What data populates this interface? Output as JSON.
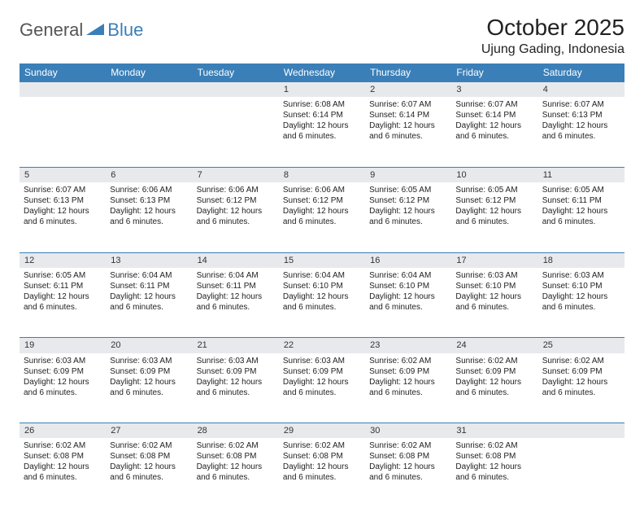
{
  "logo": {
    "text_a": "General",
    "text_b": "Blue"
  },
  "title": "October 2025",
  "location": "Ujung Gading, Indonesia",
  "colors": {
    "header_bg": "#3a7fb8",
    "header_text": "#ffffff",
    "daynum_bg": "#e7e9ec",
    "row_sep": "#3a7fb8",
    "body_text": "#222222",
    "logo_gray": "#555555",
    "logo_blue": "#3a7fb8",
    "page_bg": "#ffffff"
  },
  "typography": {
    "title_fontsize": 28,
    "location_fontsize": 16,
    "weekday_fontsize": 12,
    "daynum_fontsize": 11,
    "cell_fontsize": 10
  },
  "weekdays": [
    "Sunday",
    "Monday",
    "Tuesday",
    "Wednesday",
    "Thursday",
    "Friday",
    "Saturday"
  ],
  "weeks": [
    {
      "nums": [
        "",
        "",
        "",
        "1",
        "2",
        "3",
        "4"
      ],
      "cells": [
        null,
        null,
        null,
        {
          "sunrise": "Sunrise: 6:08 AM",
          "sunset": "Sunset: 6:14 PM",
          "day1": "Daylight: 12 hours",
          "day2": "and 6 minutes."
        },
        {
          "sunrise": "Sunrise: 6:07 AM",
          "sunset": "Sunset: 6:14 PM",
          "day1": "Daylight: 12 hours",
          "day2": "and 6 minutes."
        },
        {
          "sunrise": "Sunrise: 6:07 AM",
          "sunset": "Sunset: 6:14 PM",
          "day1": "Daylight: 12 hours",
          "day2": "and 6 minutes."
        },
        {
          "sunrise": "Sunrise: 6:07 AM",
          "sunset": "Sunset: 6:13 PM",
          "day1": "Daylight: 12 hours",
          "day2": "and 6 minutes."
        }
      ]
    },
    {
      "nums": [
        "5",
        "6",
        "7",
        "8",
        "9",
        "10",
        "11"
      ],
      "cells": [
        {
          "sunrise": "Sunrise: 6:07 AM",
          "sunset": "Sunset: 6:13 PM",
          "day1": "Daylight: 12 hours",
          "day2": "and 6 minutes."
        },
        {
          "sunrise": "Sunrise: 6:06 AM",
          "sunset": "Sunset: 6:13 PM",
          "day1": "Daylight: 12 hours",
          "day2": "and 6 minutes."
        },
        {
          "sunrise": "Sunrise: 6:06 AM",
          "sunset": "Sunset: 6:12 PM",
          "day1": "Daylight: 12 hours",
          "day2": "and 6 minutes."
        },
        {
          "sunrise": "Sunrise: 6:06 AM",
          "sunset": "Sunset: 6:12 PM",
          "day1": "Daylight: 12 hours",
          "day2": "and 6 minutes."
        },
        {
          "sunrise": "Sunrise: 6:05 AM",
          "sunset": "Sunset: 6:12 PM",
          "day1": "Daylight: 12 hours",
          "day2": "and 6 minutes."
        },
        {
          "sunrise": "Sunrise: 6:05 AM",
          "sunset": "Sunset: 6:12 PM",
          "day1": "Daylight: 12 hours",
          "day2": "and 6 minutes."
        },
        {
          "sunrise": "Sunrise: 6:05 AM",
          "sunset": "Sunset: 6:11 PM",
          "day1": "Daylight: 12 hours",
          "day2": "and 6 minutes."
        }
      ]
    },
    {
      "nums": [
        "12",
        "13",
        "14",
        "15",
        "16",
        "17",
        "18"
      ],
      "cells": [
        {
          "sunrise": "Sunrise: 6:05 AM",
          "sunset": "Sunset: 6:11 PM",
          "day1": "Daylight: 12 hours",
          "day2": "and 6 minutes."
        },
        {
          "sunrise": "Sunrise: 6:04 AM",
          "sunset": "Sunset: 6:11 PM",
          "day1": "Daylight: 12 hours",
          "day2": "and 6 minutes."
        },
        {
          "sunrise": "Sunrise: 6:04 AM",
          "sunset": "Sunset: 6:11 PM",
          "day1": "Daylight: 12 hours",
          "day2": "and 6 minutes."
        },
        {
          "sunrise": "Sunrise: 6:04 AM",
          "sunset": "Sunset: 6:10 PM",
          "day1": "Daylight: 12 hours",
          "day2": "and 6 minutes."
        },
        {
          "sunrise": "Sunrise: 6:04 AM",
          "sunset": "Sunset: 6:10 PM",
          "day1": "Daylight: 12 hours",
          "day2": "and 6 minutes."
        },
        {
          "sunrise": "Sunrise: 6:03 AM",
          "sunset": "Sunset: 6:10 PM",
          "day1": "Daylight: 12 hours",
          "day2": "and 6 minutes."
        },
        {
          "sunrise": "Sunrise: 6:03 AM",
          "sunset": "Sunset: 6:10 PM",
          "day1": "Daylight: 12 hours",
          "day2": "and 6 minutes."
        }
      ]
    },
    {
      "nums": [
        "19",
        "20",
        "21",
        "22",
        "23",
        "24",
        "25"
      ],
      "cells": [
        {
          "sunrise": "Sunrise: 6:03 AM",
          "sunset": "Sunset: 6:09 PM",
          "day1": "Daylight: 12 hours",
          "day2": "and 6 minutes."
        },
        {
          "sunrise": "Sunrise: 6:03 AM",
          "sunset": "Sunset: 6:09 PM",
          "day1": "Daylight: 12 hours",
          "day2": "and 6 minutes."
        },
        {
          "sunrise": "Sunrise: 6:03 AM",
          "sunset": "Sunset: 6:09 PM",
          "day1": "Daylight: 12 hours",
          "day2": "and 6 minutes."
        },
        {
          "sunrise": "Sunrise: 6:03 AM",
          "sunset": "Sunset: 6:09 PM",
          "day1": "Daylight: 12 hours",
          "day2": "and 6 minutes."
        },
        {
          "sunrise": "Sunrise: 6:02 AM",
          "sunset": "Sunset: 6:09 PM",
          "day1": "Daylight: 12 hours",
          "day2": "and 6 minutes."
        },
        {
          "sunrise": "Sunrise: 6:02 AM",
          "sunset": "Sunset: 6:09 PM",
          "day1": "Daylight: 12 hours",
          "day2": "and 6 minutes."
        },
        {
          "sunrise": "Sunrise: 6:02 AM",
          "sunset": "Sunset: 6:09 PM",
          "day1": "Daylight: 12 hours",
          "day2": "and 6 minutes."
        }
      ]
    },
    {
      "nums": [
        "26",
        "27",
        "28",
        "29",
        "30",
        "31",
        ""
      ],
      "cells": [
        {
          "sunrise": "Sunrise: 6:02 AM",
          "sunset": "Sunset: 6:08 PM",
          "day1": "Daylight: 12 hours",
          "day2": "and 6 minutes."
        },
        {
          "sunrise": "Sunrise: 6:02 AM",
          "sunset": "Sunset: 6:08 PM",
          "day1": "Daylight: 12 hours",
          "day2": "and 6 minutes."
        },
        {
          "sunrise": "Sunrise: 6:02 AM",
          "sunset": "Sunset: 6:08 PM",
          "day1": "Daylight: 12 hours",
          "day2": "and 6 minutes."
        },
        {
          "sunrise": "Sunrise: 6:02 AM",
          "sunset": "Sunset: 6:08 PM",
          "day1": "Daylight: 12 hours",
          "day2": "and 6 minutes."
        },
        {
          "sunrise": "Sunrise: 6:02 AM",
          "sunset": "Sunset: 6:08 PM",
          "day1": "Daylight: 12 hours",
          "day2": "and 6 minutes."
        },
        {
          "sunrise": "Sunrise: 6:02 AM",
          "sunset": "Sunset: 6:08 PM",
          "day1": "Daylight: 12 hours",
          "day2": "and 6 minutes."
        },
        null
      ]
    }
  ]
}
